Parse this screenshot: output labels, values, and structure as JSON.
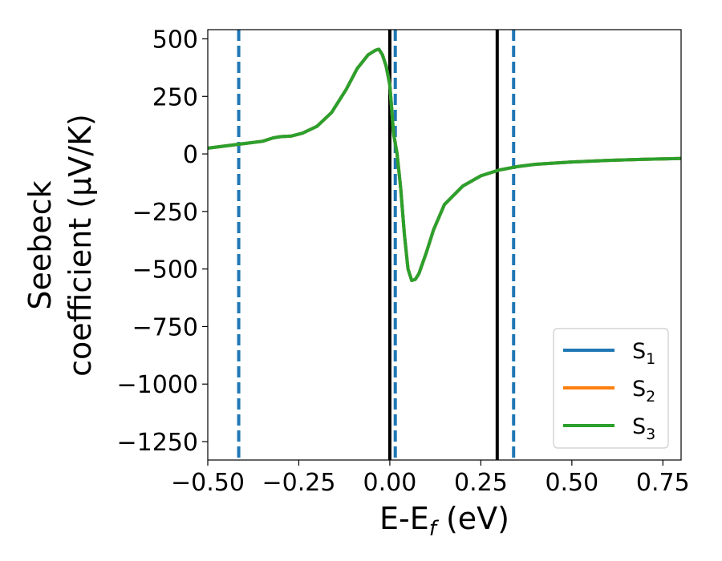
{
  "chart_data": {
    "type": "line",
    "xlabel": "E-E_f (eV)",
    "ylabel": "Seebeck coefficient (μV/K)",
    "ylabel_lines": [
      "Seebeck",
      "coefficient  (μV/K)"
    ],
    "xlim": [
      -0.5,
      0.8
    ],
    "ylim": [
      -1330,
      540
    ],
    "xticks": [
      -0.5,
      -0.25,
      0.0,
      0.25,
      0.5,
      0.75
    ],
    "xtick_labels": [
      "−0.50",
      "−0.25",
      "0.00",
      "0.25",
      "0.50",
      "0.75"
    ],
    "yticks": [
      500,
      250,
      0,
      -250,
      -500,
      -750,
      -1000,
      -1250
    ],
    "ytick_labels": [
      "500",
      "250",
      "0",
      "−250",
      "−500",
      "−750",
      "−1000",
      "−1250"
    ],
    "grid": false,
    "legend_position": "lower-right",
    "series": [
      {
        "name": "S1",
        "label_main": "S",
        "label_sub": "1",
        "color": "#1f77b4",
        "x": [
          -0.5,
          -0.45,
          -0.4,
          -0.35,
          -0.32,
          -0.3,
          -0.27,
          -0.24,
          -0.2,
          -0.16,
          -0.12,
          -0.09,
          -0.06,
          -0.04,
          -0.03,
          -0.02,
          -0.01,
          0.0,
          0.005,
          0.01,
          0.02,
          0.03,
          0.04,
          0.05,
          0.06,
          0.07,
          0.08,
          0.1,
          0.12,
          0.15,
          0.2,
          0.25,
          0.3,
          0.35,
          0.4,
          0.5,
          0.6,
          0.7,
          0.8
        ],
        "y": [
          25,
          35,
          45,
          55,
          70,
          75,
          78,
          90,
          120,
          180,
          280,
          370,
          430,
          450,
          455,
          430,
          380,
          300,
          200,
          90,
          0,
          -150,
          -350,
          -500,
          -550,
          -545,
          -520,
          -430,
          -330,
          -220,
          -140,
          -95,
          -70,
          -55,
          -45,
          -35,
          -28,
          -23,
          -20
        ]
      },
      {
        "name": "S2",
        "label_main": "S",
        "label_sub": "2",
        "color": "#ff7f0e",
        "x": [
          -0.5,
          -0.45,
          -0.4,
          -0.35,
          -0.32,
          -0.3,
          -0.27,
          -0.24,
          -0.2,
          -0.16,
          -0.12,
          -0.09,
          -0.06,
          -0.04,
          -0.03,
          -0.02,
          -0.01,
          0.0,
          0.005,
          0.01,
          0.02,
          0.03,
          0.04,
          0.05,
          0.06,
          0.07,
          0.08,
          0.1,
          0.12,
          0.15,
          0.2,
          0.25,
          0.3,
          0.35,
          0.4,
          0.5,
          0.6,
          0.7,
          0.8
        ],
        "y": [
          25,
          35,
          45,
          55,
          70,
          75,
          78,
          90,
          120,
          180,
          280,
          370,
          430,
          450,
          455,
          430,
          380,
          300,
          200,
          90,
          0,
          -150,
          -350,
          -500,
          -550,
          -545,
          -520,
          -430,
          -330,
          -220,
          -140,
          -95,
          -70,
          -55,
          -45,
          -35,
          -28,
          -23,
          -20
        ]
      },
      {
        "name": "S3",
        "label_main": "S",
        "label_sub": "3",
        "color": "#2ca02c",
        "x": [
          -0.5,
          -0.45,
          -0.4,
          -0.35,
          -0.32,
          -0.3,
          -0.27,
          -0.24,
          -0.2,
          -0.16,
          -0.12,
          -0.09,
          -0.06,
          -0.04,
          -0.03,
          -0.02,
          -0.01,
          0.0,
          0.005,
          0.01,
          0.02,
          0.03,
          0.04,
          0.05,
          0.06,
          0.07,
          0.08,
          0.1,
          0.12,
          0.15,
          0.2,
          0.25,
          0.3,
          0.35,
          0.4,
          0.5,
          0.6,
          0.7,
          0.8
        ],
        "y": [
          25,
          35,
          45,
          55,
          70,
          75,
          78,
          90,
          120,
          180,
          280,
          370,
          430,
          450,
          455,
          430,
          380,
          300,
          200,
          90,
          0,
          -150,
          -350,
          -500,
          -550,
          -545,
          -520,
          -430,
          -330,
          -220,
          -140,
          -95,
          -70,
          -55,
          -45,
          -35,
          -28,
          -23,
          -20
        ]
      }
    ],
    "vertical_lines": [
      {
        "x": 0.0,
        "color": "#000000",
        "style": "solid"
      },
      {
        "x": 0.295,
        "color": "#000000",
        "style": "solid"
      },
      {
        "x": -0.415,
        "color": "#1f77b4",
        "style": "dashed"
      },
      {
        "x": 0.015,
        "color": "#1f77b4",
        "style": "dashed"
      },
      {
        "x": 0.34,
        "color": "#1f77b4",
        "style": "dashed"
      }
    ]
  }
}
